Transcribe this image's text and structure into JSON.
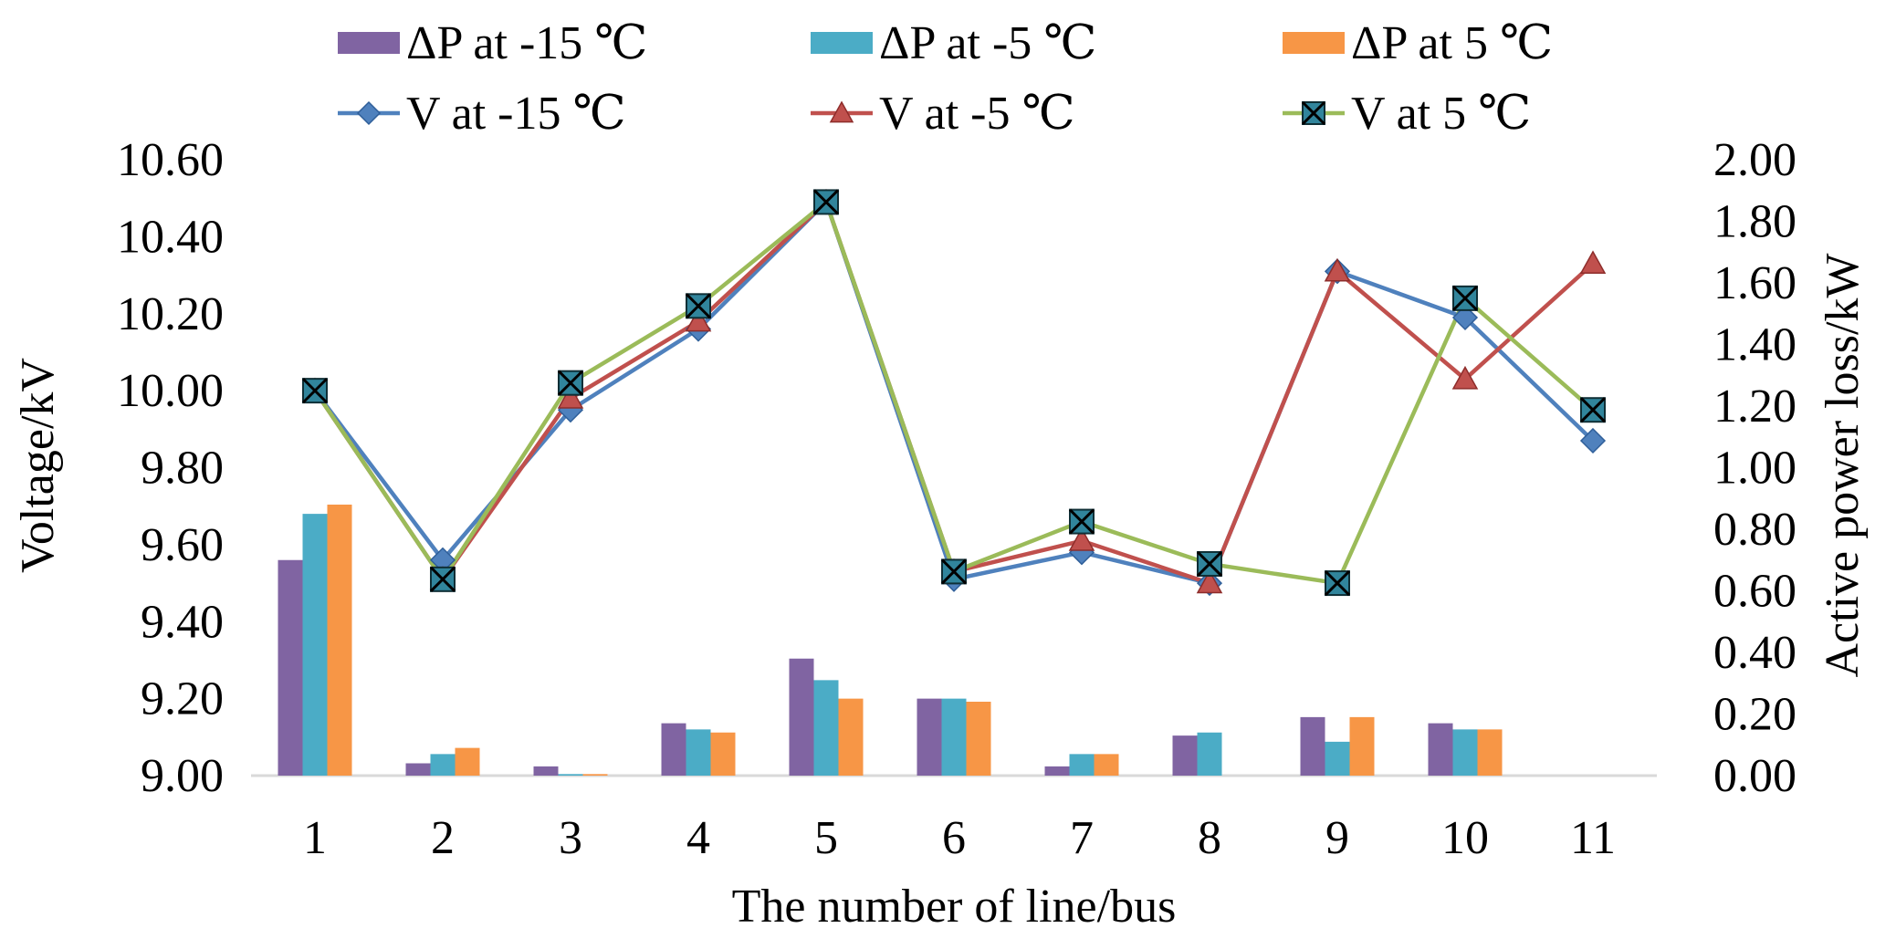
{
  "chart_data": {
    "type": "bar+line",
    "title": "",
    "xlabel": "The number of line/bus",
    "ylabel_left": "Voltage/kV",
    "ylabel_right": "Active power loss/kW",
    "categories": [
      "1",
      "2",
      "3",
      "4",
      "5",
      "6",
      "7",
      "8",
      "9",
      "10",
      "11"
    ],
    "ylim_left": [
      9.0,
      10.6
    ],
    "ylim_right": [
      0.0,
      2.0
    ],
    "yticks_left": [
      "9.00",
      "9.20",
      "9.40",
      "9.60",
      "9.80",
      "10.00",
      "10.20",
      "10.40",
      "10.60"
    ],
    "yticks_right": [
      "0.00",
      "0.20",
      "0.40",
      "0.60",
      "0.80",
      "1.00",
      "1.20",
      "1.40",
      "1.60",
      "1.80",
      "2.00"
    ],
    "bar_series": [
      {
        "name": "ΔP at -15 ℃",
        "color": "#8064a2",
        "values": [
          0.7,
          0.04,
          0.03,
          0.17,
          0.38,
          0.25,
          0.03,
          0.13,
          0.19,
          0.17,
          0.0
        ]
      },
      {
        "name": "ΔP at -5 ℃",
        "color": "#4bacc6",
        "values": [
          0.85,
          0.07,
          0.005,
          0.15,
          0.31,
          0.25,
          0.07,
          0.14,
          0.11,
          0.15,
          0.0
        ]
      },
      {
        "name": "ΔP at 5 ℃",
        "color": "#f79646",
        "values": [
          0.88,
          0.09,
          0.005,
          0.14,
          0.25,
          0.24,
          0.07,
          0.0,
          0.19,
          0.15,
          0.0
        ]
      }
    ],
    "line_series": [
      {
        "name": "V at -15 ℃",
        "color": "#4f81bd",
        "marker": "diamond",
        "values": [
          10.0,
          9.56,
          9.95,
          10.16,
          10.49,
          9.51,
          9.58,
          9.5,
          10.31,
          10.19,
          9.87
        ]
      },
      {
        "name": "V at -5 ℃",
        "color": "#c0504d",
        "marker": "triangle",
        "values": [
          10.0,
          9.51,
          9.98,
          10.18,
          10.49,
          9.53,
          9.61,
          9.5,
          10.31,
          10.03,
          10.33
        ]
      },
      {
        "name": "V at 5 ℃",
        "color": "#9bbb59",
        "marker": "x-square",
        "values": [
          10.0,
          9.51,
          10.02,
          10.22,
          10.49,
          9.53,
          9.66,
          9.55,
          9.5,
          10.24,
          9.95
        ]
      }
    ],
    "legend_position": "top"
  }
}
